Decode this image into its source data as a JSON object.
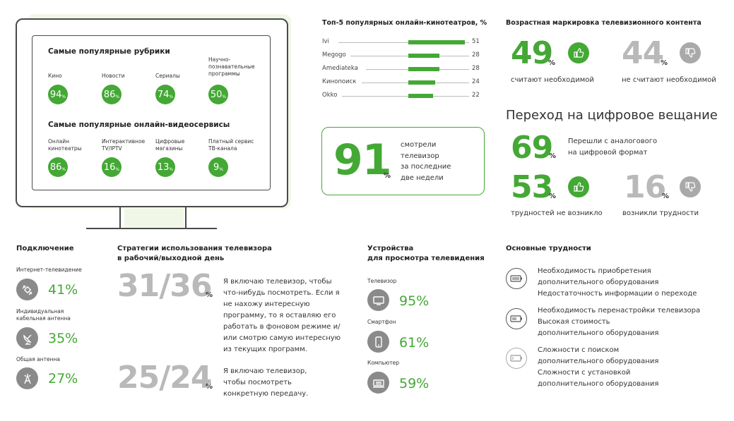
{
  "tv": {
    "rubrics_title": "Самые популярные рубрики",
    "rubrics": [
      {
        "label": "Кино",
        "value": "94"
      },
      {
        "label": "Новости",
        "value": "86"
      },
      {
        "label": "Сериалы",
        "value": "74"
      },
      {
        "label": "Научно-познавательные программы",
        "value": "50"
      }
    ],
    "services_title": "Самые популярные онлайн-видеосервисы",
    "services": [
      {
        "label": "Онлайн кинотеатры",
        "value": "86"
      },
      {
        "label": "Интерактивное TV/IPTV",
        "value": "16"
      },
      {
        "label": "Цифровые магазины",
        "value": "13"
      },
      {
        "label": "Платный сервис ТВ-канала",
        "value": "9"
      }
    ],
    "pct_sign": "%"
  },
  "chart_data": {
    "type": "bar",
    "title": "Топ-5 популярных онлайн-кинотеатров, %",
    "categories": [
      "Ivi",
      "Megogo",
      "Amediateka",
      "Кинопоиск",
      "Okko"
    ],
    "values": [
      51,
      28,
      28,
      24,
      22
    ],
    "values_text": [
      "51",
      "28",
      "28",
      "24",
      "22"
    ],
    "color": "#44a835"
  },
  "watched": {
    "value": "91",
    "pct": "%",
    "text": [
      "смотрели",
      "телевизор",
      "за последние",
      "две недели"
    ]
  },
  "age": {
    "title": "Возрастная маркировка телевизионного контента",
    "yes_value": "49",
    "yes_label": "считают необходимой",
    "no_value": "44",
    "no_label": "не считают необходимой",
    "pct": "%"
  },
  "digital": {
    "title": "Переход на цифровое вещание",
    "switched_value": "69",
    "switched_label": [
      "Перешли с аналогового",
      "на цифровой формат"
    ],
    "ok_value": "53",
    "ok_label": "трудностей не возникло",
    "hard_value": "16",
    "hard_label": "возникли трудности",
    "pct": "%"
  },
  "connection": {
    "title": "Подключение",
    "items": [
      {
        "label": "Интернет-телевидение",
        "value": "41%",
        "icon": "satellite-icon"
      },
      {
        "label": "Индивидуальная кабельная антенна",
        "value": "35%",
        "icon": "satellite-dish-icon"
      },
      {
        "label": "Общая антенна",
        "value": "27%",
        "icon": "antenna-icon"
      }
    ]
  },
  "strategies": {
    "title": [
      "Стратегии использования телевизора",
      "в рабочий/выходной день"
    ],
    "items": [
      {
        "value": "31/36",
        "pct": "%",
        "text": "Я включаю телевизор, чтобы что-нибудь посмотреть. Если я не нахожу интересную программу, то я оставляю его работать в фоновом режиме и/ или смотрю самую интересную из текущих программ."
      },
      {
        "value": "25/24",
        "pct": "%",
        "text": "Я включаю телевизор, чтобы посмотреть конкретную передачу."
      }
    ]
  },
  "devices": {
    "title": [
      "Устройства",
      "для просмотра телевидения"
    ],
    "items": [
      {
        "label": "Телевизор",
        "value": "95%",
        "icon": "tv-icon"
      },
      {
        "label": "Смартфон",
        "value": "61%",
        "icon": "smartphone-icon"
      },
      {
        "label": "Компьютер",
        "value": "59%",
        "icon": "computer-icon"
      }
    ]
  },
  "difficulties": {
    "title": "Основные трудности",
    "items": [
      {
        "icon": "battery-full-icon",
        "lines": [
          "Необходимость приобретения",
          "дополнительного оборудования",
          "Недостаточность информации о переходе"
        ]
      },
      {
        "icon": "battery-half-icon",
        "lines": [
          "Необходимость перенастройки телевизора",
          "Высокая стоимость",
          "дополнительного оборудования"
        ]
      },
      {
        "icon": "battery-low-icon",
        "lines": [
          "Сложности с поиском",
          "дополнительного оборудования",
          "Сложности с установкой",
          "дополнительного оборудования"
        ]
      }
    ]
  }
}
